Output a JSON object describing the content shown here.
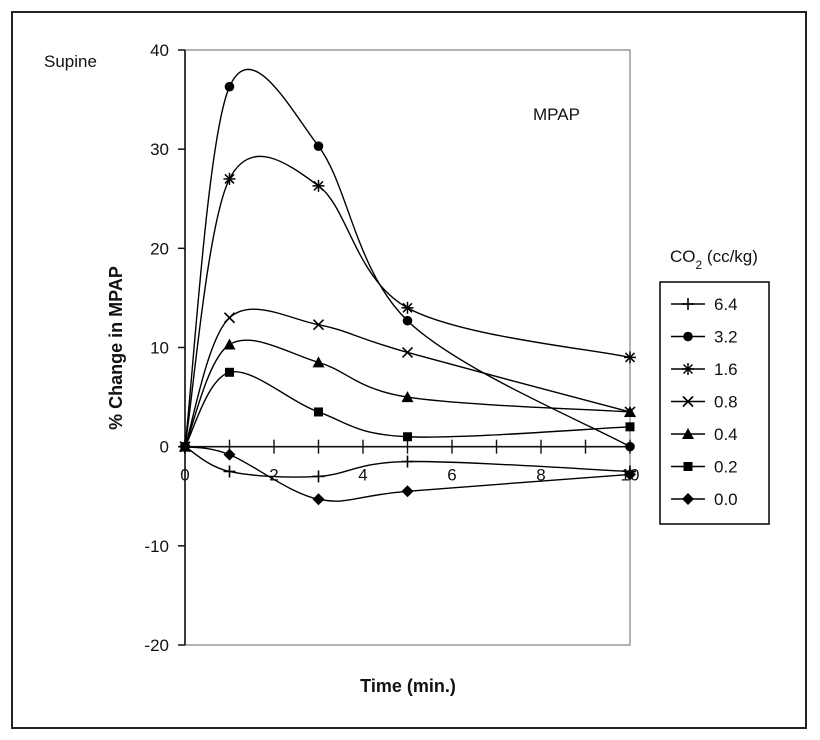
{
  "labels": {
    "supine": "Supine",
    "legend_title": "CO2 (cc/kg)",
    "legend_title_main": "CO",
    "legend_title_sub": "2",
    "legend_title_unit": " (cc/kg)"
  },
  "chart_data": {
    "type": "line",
    "title": "MPAP",
    "xlabel": "Time (min.)",
    "ylabel": "% Change in MPAP",
    "xlim": [
      0,
      10
    ],
    "ylim": [
      -20,
      40
    ],
    "xticks": [
      0,
      2,
      4,
      6,
      8,
      10
    ],
    "yticks": [
      -20,
      -10,
      0,
      10,
      20,
      30,
      40
    ],
    "grid": false,
    "legend_position": "right",
    "x": [
      0,
      1,
      3,
      5,
      10
    ],
    "series": [
      {
        "name": "6.4",
        "marker": "plus",
        "values": [
          0,
          -2.5,
          -3,
          -1.5,
          -2.5
        ]
      },
      {
        "name": "3.2",
        "marker": "circle",
        "values": [
          0,
          36.3,
          30.3,
          12.7,
          0
        ]
      },
      {
        "name": "1.6",
        "marker": "asterisk",
        "values": [
          0,
          27,
          26.3,
          14,
          9
        ]
      },
      {
        "name": "0.8",
        "marker": "x",
        "values": [
          0,
          13,
          12.3,
          9.5,
          3.5
        ]
      },
      {
        "name": "0.4",
        "marker": "triangle",
        "values": [
          0,
          10.3,
          8.5,
          5,
          3.5
        ]
      },
      {
        "name": "0.2",
        "marker": "square",
        "values": [
          0,
          7.5,
          3.5,
          1,
          2
        ]
      },
      {
        "name": "0.0",
        "marker": "diamond",
        "values": [
          0,
          -0.8,
          -5.3,
          -4.5,
          -2.8
        ]
      }
    ]
  }
}
